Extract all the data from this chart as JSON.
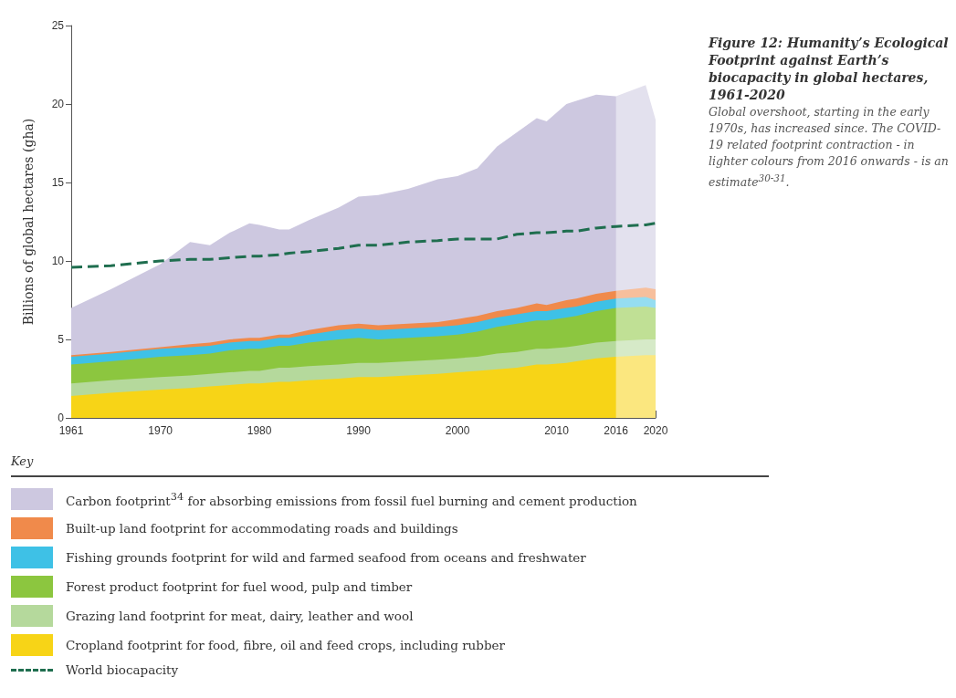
{
  "chart_data": {
    "type": "area",
    "stacked": true,
    "title": "Figure 12: Humanity’s Ecological Footprint against Earth’s biocapacity in global hectares, 1961-2020",
    "subtitle": "Global overshoot, starting in the early 1970s, has increased since. The COVID-19 related footprint contraction - in lighter colours from 2016 onwards - is an estimate$^{30-31}$.",
    "ylabel": "Billions of global hectares (gha)",
    "legend_title": "Key",
    "x": [
      1961,
      1965,
      1970,
      1973,
      1975,
      1977,
      1979,
      1980,
      1982,
      1983,
      1985,
      1988,
      1990,
      1992,
      1995,
      1998,
      2000,
      2002,
      2004,
      2006,
      2008,
      2009,
      2011,
      2012,
      2014,
      2016,
      2019,
      2020
    ],
    "series": [
      {
        "name": "Cropland footprint for food, fibre, oil and feed crops, including rubber",
        "color": "#f7d417",
        "values": [
          1.4,
          1.6,
          1.8,
          1.9,
          2.0,
          2.1,
          2.2,
          2.2,
          2.3,
          2.3,
          2.4,
          2.5,
          2.6,
          2.6,
          2.7,
          2.8,
          2.9,
          3.0,
          3.1,
          3.2,
          3.4,
          3.4,
          3.5,
          3.6,
          3.8,
          3.9,
          4.0,
          4.0
        ]
      },
      {
        "name": "Grazing land footprint for meat, dairy, leather and wool",
        "color": "#b5d99c",
        "values": [
          0.8,
          0.8,
          0.8,
          0.8,
          0.8,
          0.8,
          0.8,
          0.8,
          0.9,
          0.9,
          0.9,
          0.9,
          0.9,
          0.9,
          0.9,
          0.9,
          0.9,
          0.9,
          1.0,
          1.0,
          1.0,
          1.0,
          1.0,
          1.0,
          1.0,
          1.0,
          1.0,
          1.0
        ]
      },
      {
        "name": "Forest product footprint for fuel wood, pulp and timber",
        "color": "#8cc63f",
        "values": [
          1.2,
          1.2,
          1.3,
          1.3,
          1.3,
          1.4,
          1.4,
          1.4,
          1.4,
          1.4,
          1.5,
          1.6,
          1.6,
          1.5,
          1.5,
          1.5,
          1.5,
          1.6,
          1.7,
          1.8,
          1.8,
          1.8,
          1.9,
          1.9,
          2.0,
          2.1,
          2.1,
          2.0
        ]
      },
      {
        "name": "Fishing grounds footprint for wild and farmed seafood from oceans and freshwater",
        "color": "#3ec1e6",
        "values": [
          0.5,
          0.5,
          0.5,
          0.5,
          0.5,
          0.5,
          0.5,
          0.5,
          0.5,
          0.5,
          0.5,
          0.6,
          0.6,
          0.6,
          0.6,
          0.6,
          0.6,
          0.6,
          0.6,
          0.6,
          0.6,
          0.6,
          0.6,
          0.6,
          0.6,
          0.6,
          0.6,
          0.5
        ]
      },
      {
        "name": "Built-up land footprint for accommodating roads and buildings",
        "color": "#f08a4b",
        "values": [
          0.1,
          0.1,
          0.1,
          0.2,
          0.2,
          0.2,
          0.2,
          0.2,
          0.2,
          0.2,
          0.3,
          0.3,
          0.3,
          0.3,
          0.3,
          0.3,
          0.4,
          0.4,
          0.4,
          0.4,
          0.5,
          0.4,
          0.5,
          0.5,
          0.5,
          0.5,
          0.6,
          0.7
        ]
      },
      {
        "name": "Carbon footprint$^{34}$ for absorbing emissions from fossil fuel burning and cement production",
        "color": "#cdc8e0",
        "values": [
          3.0,
          4.0,
          5.3,
          6.5,
          6.2,
          6.8,
          7.3,
          7.2,
          6.7,
          6.7,
          7.0,
          7.5,
          8.1,
          8.3,
          8.6,
          9.1,
          9.1,
          9.4,
          10.5,
          11.2,
          11.8,
          11.7,
          12.5,
          12.6,
          12.7,
          12.4,
          12.9,
          10.8
        ]
      },
      {
        "name": "World biocapacity",
        "type": "line",
        "line_style": "dashed",
        "color": "#1f6e4f",
        "values": [
          9.6,
          9.7,
          10.0,
          10.1,
          10.1,
          10.2,
          10.3,
          10.3,
          10.4,
          10.5,
          10.6,
          10.8,
          11.0,
          11.0,
          11.2,
          11.3,
          11.4,
          11.4,
          11.4,
          11.7,
          11.8,
          11.8,
          11.9,
          11.9,
          12.1,
          12.2,
          12.3,
          12.4
        ]
      }
    ],
    "bands": [
      {
        "axis": "x",
        "from": 2016,
        "to": 2020,
        "color": "#ffffff"
      }
    ],
    "xlim": [
      1961,
      2020
    ],
    "xticks": [
      1961,
      1970,
      1980,
      1990,
      2000,
      2010,
      2016,
      2020
    ],
    "ylim": [
      0,
      25
    ],
    "yticks": [
      0,
      5,
      10,
      15,
      20,
      25
    ],
    "grid": false,
    "legend": "bottom",
    "marker": "none"
  }
}
